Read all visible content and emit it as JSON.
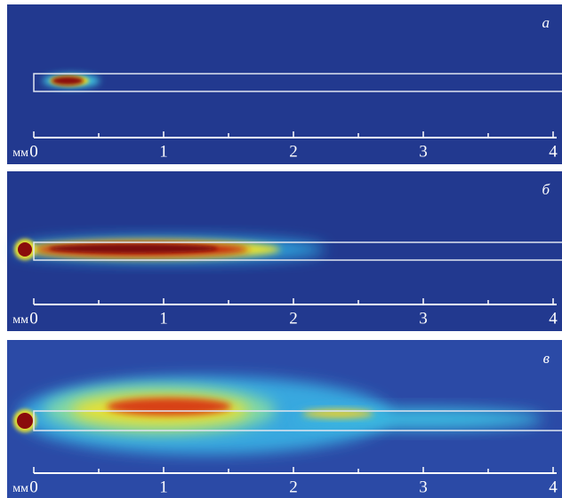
{
  "panels": [
    {
      "label": "а",
      "unit": "мм",
      "xlim": [
        0,
        4
      ],
      "ticks": [
        0,
        1,
        2,
        3,
        4
      ]
    },
    {
      "label": "б",
      "unit": "мм",
      "xlim": [
        0,
        4
      ],
      "ticks": [
        0,
        1,
        2,
        3,
        4
      ]
    },
    {
      "label": "в",
      "unit": "мм",
      "xlim": [
        0,
        4
      ],
      "ticks": [
        0,
        1,
        2,
        3,
        4
      ]
    }
  ]
}
